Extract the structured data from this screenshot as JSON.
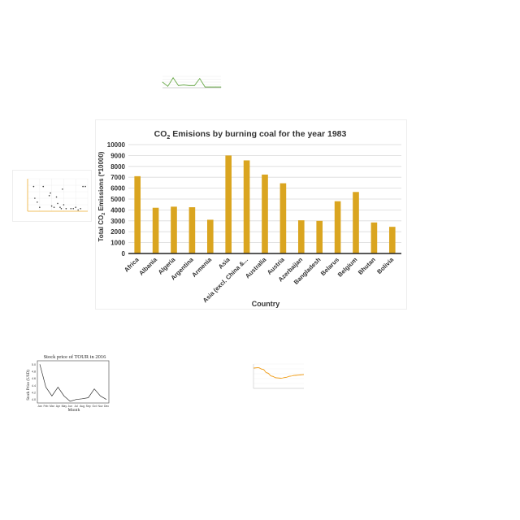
{
  "chart_data": [
    {
      "id": "main",
      "type": "bar",
      "title": "CO",
      "title_sub": "2",
      "title_rest": " Emisions by burning coal for the year 1983",
      "xlabel": "Country",
      "ylabel_main": "Total CO",
      "ylabel_sub": "2",
      "ylabel_rest": " Emissions (*10000)",
      "categories": [
        "Africa",
        "Albania",
        "Algeria",
        "Argentina",
        "Armenia",
        "Asia",
        "Asia (excl. China &...",
        "Australia",
        "Austria",
        "Azerbaijan",
        "Bangladesh",
        "Belarus",
        "Belgium",
        "Bhutan",
        "Bolivia"
      ],
      "values": [
        7100,
        4200,
        4300,
        4250,
        3100,
        9000,
        8550,
        7250,
        6450,
        3050,
        3000,
        4800,
        5650,
        2850,
        2450
      ],
      "ylim": [
        0,
        10000
      ],
      "yticks": [
        0,
        1000,
        2000,
        3000,
        4000,
        5000,
        6000,
        7000,
        8000,
        9000,
        10000
      ],
      "grid": true,
      "color": "#DAA520"
    },
    {
      "id": "thumb-line-green",
      "type": "line",
      "title": "",
      "categories": [
        "",
        "",
        "",
        "",
        "",
        "",
        "",
        "",
        "",
        "",
        "",
        ""
      ],
      "values": [
        8,
        2,
        14,
        3,
        4,
        3,
        3,
        13,
        1,
        1,
        1,
        1
      ],
      "ylim": [
        0,
        16
      ],
      "grid": true,
      "color": "#6aaa4a"
    },
    {
      "id": "thumb-scatter",
      "type": "scatter",
      "title": "",
      "points": [
        [
          5,
          19
        ],
        [
          6,
          10
        ],
        [
          8,
          7
        ],
        [
          10,
          3
        ],
        [
          13,
          19
        ],
        [
          18,
          12
        ],
        [
          19,
          14
        ],
        [
          20,
          4
        ],
        [
          22,
          3
        ],
        [
          24,
          11
        ],
        [
          25,
          6
        ],
        [
          27,
          3
        ],
        [
          28,
          2
        ],
        [
          29,
          17
        ],
        [
          30,
          5
        ],
        [
          32,
          2
        ],
        [
          36,
          2
        ],
        [
          38,
          2
        ],
        [
          40,
          3
        ],
        [
          42,
          1
        ],
        [
          44,
          2
        ],
        [
          46,
          19
        ],
        [
          48,
          19
        ]
      ],
      "xlim": [
        0,
        50
      ],
      "ylim": [
        0,
        25
      ],
      "grid": true,
      "color": "#444444"
    },
    {
      "id": "thumb-stock",
      "type": "line",
      "title": "Stock price of TOUR in 2016",
      "xlabel": "Month",
      "ylabel": "Stock Price (USD)",
      "categories": [
        "Jan",
        "Feb",
        "Mar",
        "Apr",
        "May",
        "Jun",
        "Jul",
        "Aug",
        "Sep",
        "Oct",
        "Nov",
        "Dec"
      ],
      "values": [
        5.0,
        4.35,
        4.1,
        4.35,
        4.1,
        3.95,
        4.0,
        4.02,
        4.05,
        4.3,
        4.1,
        4.0
      ],
      "ylim": [
        3.9,
        5.1
      ],
      "yticks": [
        "4.0",
        "4.2",
        "4.4",
        "4.6",
        "4.8",
        "5.0"
      ],
      "grid": false,
      "color": "#333333"
    },
    {
      "id": "thumb-line-orange",
      "type": "line",
      "title": "",
      "categories": [
        "",
        "",
        "",
        "",
        "",
        "",
        "",
        "",
        "",
        "",
        "",
        ""
      ],
      "values": [
        5.0,
        5.1,
        4.7,
        3.8,
        3.0,
        2.6,
        2.5,
        2.7,
        3.0,
        3.2,
        3.3,
        3.4
      ],
      "ylim": [
        0,
        6
      ],
      "grid": true,
      "color": "#f0a020"
    }
  ]
}
